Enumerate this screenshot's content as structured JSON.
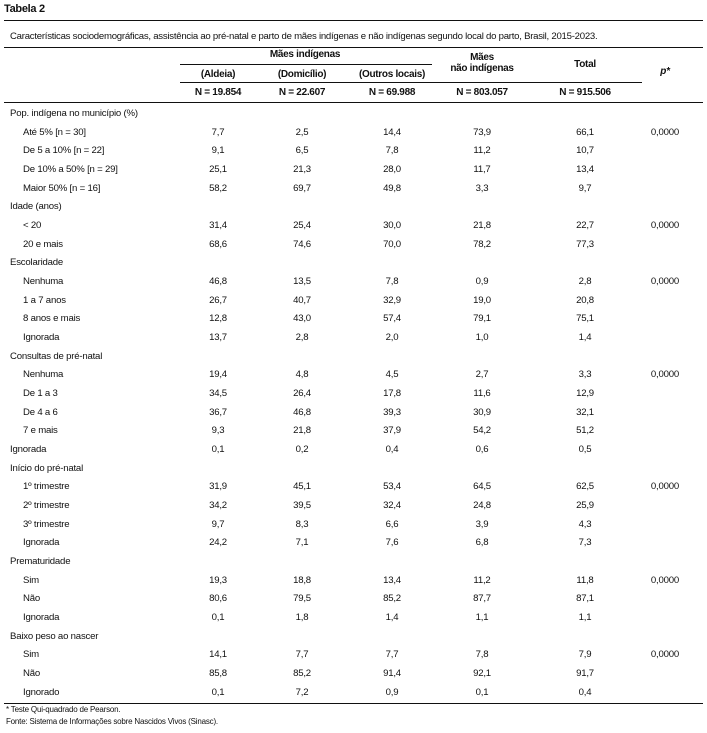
{
  "title": "Tabela 2",
  "caption": "Características sociodemográficas, assistência ao pré-natal e parto de mães indígenas e não indígenas segundo local do parto, Brasil, 2015-2023.",
  "header": {
    "group_indigenous": "Mães indígenas",
    "col_aldeia": "(Aldeia)",
    "col_domicilio": "(Domicílio)",
    "col_outros": "(Outros locais)",
    "col_nao_indigenas_1": "Mães",
    "col_nao_indigenas_2": "não indígenas",
    "col_total": "Total",
    "col_p": "p*",
    "n_aldeia": "N = 19.854",
    "n_domicilio": "N = 22.607",
    "n_outros": "N = 69.988",
    "n_nao_indigenas": "N = 803.057",
    "n_total": "N = 915.506"
  },
  "rows": [
    {
      "label": "Pop. indígena no município (%)",
      "level": 0,
      "values": []
    },
    {
      "label": "Até 5% [n = 30]",
      "level": 1,
      "values": [
        "7,7",
        "2,5",
        "14,4",
        "73,9",
        "66,1",
        "0,0000"
      ]
    },
    {
      "label": "De 5 a 10% [n = 22]",
      "level": 1,
      "values": [
        "9,1",
        "6,5",
        "7,8",
        "11,2",
        "10,7",
        ""
      ]
    },
    {
      "label": "De 10% a 50% [n = 29]",
      "level": 1,
      "values": [
        "25,1",
        "21,3",
        "28,0",
        "11,7",
        "13,4",
        ""
      ]
    },
    {
      "label": "Maior 50% [n = 16]",
      "level": 1,
      "values": [
        "58,2",
        "69,7",
        "49,8",
        "3,3",
        "9,7",
        ""
      ]
    },
    {
      "label": "Idade (anos)",
      "level": 0,
      "values": []
    },
    {
      "label": "< 20",
      "level": 1,
      "values": [
        "31,4",
        "25,4",
        "30,0",
        "21,8",
        "22,7",
        "0,0000"
      ]
    },
    {
      "label": "20 e mais",
      "level": 1,
      "values": [
        "68,6",
        "74,6",
        "70,0",
        "78,2",
        "77,3",
        ""
      ]
    },
    {
      "label": "Escolaridade",
      "level": 0,
      "values": []
    },
    {
      "label": "Nenhuma",
      "level": 1,
      "values": [
        "46,8",
        "13,5",
        "7,8",
        "0,9",
        "2,8",
        "0,0000"
      ]
    },
    {
      "label": "1 a 7 anos",
      "level": 1,
      "values": [
        "26,7",
        "40,7",
        "32,9",
        "19,0",
        "20,8",
        ""
      ]
    },
    {
      "label": "8 anos e mais",
      "level": 1,
      "values": [
        "12,8",
        "43,0",
        "57,4",
        "79,1",
        "75,1",
        ""
      ]
    },
    {
      "label": "Ignorada",
      "level": 1,
      "values": [
        "13,7",
        "2,8",
        "2,0",
        "1,0",
        "1,4",
        ""
      ]
    },
    {
      "label": "Consultas de pré-natal",
      "level": 0,
      "values": []
    },
    {
      "label": "Nenhuma",
      "level": 1,
      "values": [
        "19,4",
        "4,8",
        "4,5",
        "2,7",
        "3,3",
        "0,0000"
      ]
    },
    {
      "label": "De 1 a 3",
      "level": 1,
      "values": [
        "34,5",
        "26,4",
        "17,8",
        "11,6",
        "12,9",
        ""
      ]
    },
    {
      "label": "De 4 a 6",
      "level": 1,
      "values": [
        "36,7",
        "46,8",
        "39,3",
        "30,9",
        "32,1",
        ""
      ]
    },
    {
      "label": "7 e mais",
      "level": 1,
      "values": [
        "9,3",
        "21,8",
        "37,9",
        "54,2",
        "51,2",
        ""
      ]
    },
    {
      "label": "Ignorada",
      "level": 0,
      "values": [
        "0,1",
        "0,2",
        "0,4",
        "0,6",
        "0,5",
        ""
      ]
    },
    {
      "label": "Início do pré-natal",
      "level": 0,
      "values": []
    },
    {
      "label": "1º trimestre",
      "level": 1,
      "values": [
        "31,9",
        "45,1",
        "53,4",
        "64,5",
        "62,5",
        "0,0000"
      ]
    },
    {
      "label": "2º trimestre",
      "level": 1,
      "values": [
        "34,2",
        "39,5",
        "32,4",
        "24,8",
        "25,9",
        ""
      ]
    },
    {
      "label": "3º trimestre",
      "level": 1,
      "values": [
        "9,7",
        "8,3",
        "6,6",
        "3,9",
        "4,3",
        ""
      ]
    },
    {
      "label": "Ignorada",
      "level": 1,
      "values": [
        "24,2",
        "7,1",
        "7,6",
        "6,8",
        "7,3",
        ""
      ]
    },
    {
      "label": "Prematuridade",
      "level": 0,
      "values": []
    },
    {
      "label": "Sim",
      "level": 1,
      "values": [
        "19,3",
        "18,8",
        "13,4",
        "11,2",
        "11,8",
        "0,0000"
      ]
    },
    {
      "label": "Não",
      "level": 1,
      "values": [
        "80,6",
        "79,5",
        "85,2",
        "87,7",
        "87,1",
        ""
      ]
    },
    {
      "label": "Ignorada",
      "level": 1,
      "values": [
        "0,1",
        "1,8",
        "1,4",
        "1,1",
        "1,1",
        ""
      ]
    },
    {
      "label": "Baixo peso ao nascer",
      "level": 0,
      "values": []
    },
    {
      "label": "Sim",
      "level": 1,
      "values": [
        "14,1",
        "7,7",
        "7,7",
        "7,8",
        "7,9",
        "0,0000"
      ]
    },
    {
      "label": "Não",
      "level": 1,
      "values": [
        "85,8",
        "85,2",
        "91,4",
        "92,1",
        "91,7",
        ""
      ]
    },
    {
      "label": "Ignorado",
      "level": 1,
      "values": [
        "0,1",
        "7,2",
        "0,9",
        "0,1",
        "0,4",
        ""
      ]
    }
  ],
  "footnotes": {
    "note": "* Teste Qui-quadrado de Pearson.",
    "source": "Fonte: Sistema de Informações sobre Nascidos Vivos (Sinasc)."
  }
}
